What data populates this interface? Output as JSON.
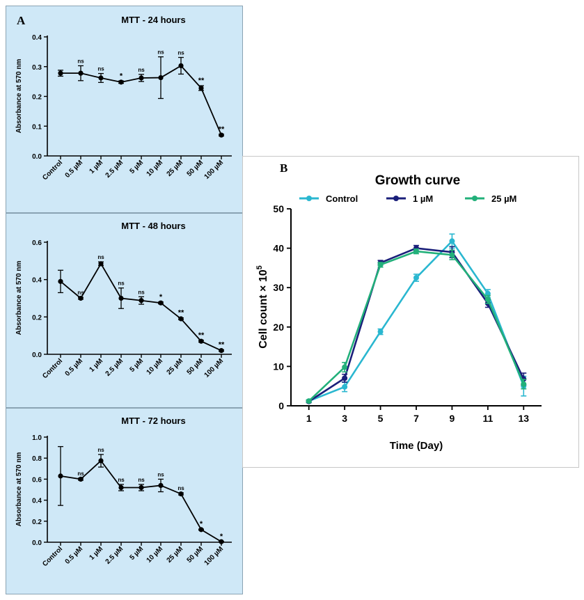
{
  "panel_labels": {
    "a": "A",
    "b": "B"
  },
  "chart_data": [
    {
      "type": "line",
      "title": "MTT - 24 hours",
      "ylabel": "Absorbance at 570 nm",
      "xlabel": "",
      "categories": [
        "Control",
        "0.5 µM",
        "1 µM",
        "2.5 µM",
        "5 µM",
        "10 µM",
        "25 µM",
        "50 µM",
        "100 µM"
      ],
      "values": [
        0.278,
        0.278,
        0.262,
        0.248,
        0.262,
        0.263,
        0.303,
        0.228,
        0.07
      ],
      "errors": [
        0.01,
        0.025,
        0.015,
        0.004,
        0.012,
        0.07,
        0.028,
        0.008,
        0.003
      ],
      "significance": [
        "",
        "ns",
        "ns",
        "*",
        "ns",
        "ns",
        "ns",
        "**",
        "**"
      ],
      "ylim": [
        0,
        0.4
      ],
      "yticks": [
        0.0,
        0.1,
        0.2,
        0.3,
        0.4
      ],
      "ytick_labels": [
        "0.0",
        "0.1",
        "0.2",
        "0.3",
        "0.4"
      ]
    },
    {
      "type": "line",
      "title": "MTT - 48 hours",
      "ylabel": "Absorbance at 570 nm",
      "xlabel": "",
      "categories": [
        "Control",
        "0.5 µM",
        "1 µM",
        "2.5 µM",
        "5 µM",
        "10 µM",
        "25 µM",
        "50 µM",
        "100 µM"
      ],
      "values": [
        0.39,
        0.3,
        0.485,
        0.3,
        0.288,
        0.275,
        0.19,
        0.07,
        0.02
      ],
      "errors": [
        0.06,
        0.005,
        0.01,
        0.055,
        0.02,
        0.005,
        0.005,
        0.005,
        0.004
      ],
      "significance": [
        "",
        "ns",
        "ns",
        "ns",
        "ns",
        "*",
        "**",
        "**",
        "**"
      ],
      "ylim": [
        0,
        0.6
      ],
      "yticks": [
        0.0,
        0.2,
        0.4,
        0.6
      ],
      "ytick_labels": [
        "0.0",
        "0.2",
        "0.4",
        "0.6"
      ]
    },
    {
      "type": "line",
      "title": "MTT - 72 hours",
      "ylabel": "Absorbance at 570 nm",
      "xlabel": "",
      "categories": [
        "Control",
        "0.5 µM",
        "1 µM",
        "2.5 µM",
        "5 µM",
        "10 µM",
        "25 µM",
        "50 µM",
        "100 µM"
      ],
      "values": [
        0.63,
        0.6,
        0.775,
        0.52,
        0.52,
        0.54,
        0.46,
        0.12,
        0.005
      ],
      "errors": [
        0.28,
        0.01,
        0.06,
        0.03,
        0.03,
        0.06,
        0.01,
        0.005,
        0.003
      ],
      "significance": [
        "",
        "ns",
        "ns",
        "ns",
        "ns",
        "ns",
        "ns",
        "*",
        "*"
      ],
      "ylim": [
        0,
        1.0
      ],
      "yticks": [
        0.0,
        0.2,
        0.4,
        0.6,
        0.8,
        1.0
      ],
      "ytick_labels": [
        "0.0",
        "0.2",
        "0.4",
        "0.6",
        "0.8",
        "1.0"
      ]
    },
    {
      "type": "line",
      "title": "Growth curve",
      "xlabel": "Time (Day)",
      "ylabel": "Cell count × 10",
      "ylabel_superscript": "5",
      "x": [
        1,
        3,
        5,
        7,
        9,
        11,
        13
      ],
      "xlim": [
        0,
        14
      ],
      "ylim": [
        0,
        50
      ],
      "xticks": [
        1,
        3,
        5,
        7,
        9,
        11,
        13
      ],
      "yticks": [
        0,
        10,
        20,
        30,
        40,
        50
      ],
      "legend_position": "top",
      "series": [
        {
          "name": "Control",
          "color": "#2ab7d0",
          "values": [
            1.2,
            4.8,
            18.8,
            32.5,
            41.8,
            28.5,
            5.0
          ],
          "errors": [
            0.3,
            1.2,
            0.7,
            0.9,
            1.8,
            1.0,
            2.5
          ]
        },
        {
          "name": "1 µM",
          "color": "#1a1f7a",
          "values": [
            1.1,
            7.0,
            36.3,
            40.0,
            39.0,
            26.0,
            6.8
          ],
          "errors": [
            0.3,
            1.0,
            0.6,
            0.7,
            1.4,
            1.0,
            1.5
          ]
        },
        {
          "name": "25 µM",
          "color": "#22b07a",
          "values": [
            1.2,
            9.8,
            35.8,
            39.2,
            38.3,
            27.0,
            5.5
          ],
          "errors": [
            0.3,
            1.2,
            0.6,
            0.6,
            1.2,
            1.0,
            1.2
          ]
        }
      ]
    }
  ]
}
